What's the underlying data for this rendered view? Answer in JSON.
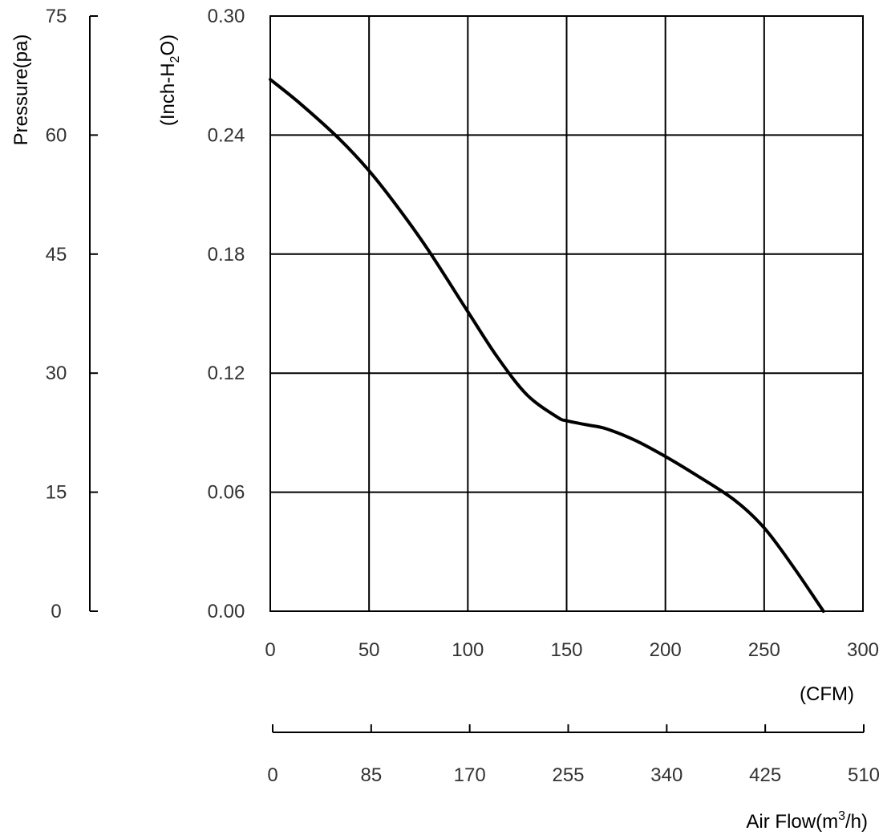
{
  "chart_data": {
    "type": "line",
    "title": "",
    "x_axis_primary": {
      "unit_label": "(CFM)",
      "range": [
        0,
        300
      ],
      "ticks": [
        "0",
        "50",
        "100",
        "150",
        "200",
        "250",
        "300"
      ]
    },
    "x_axis_secondary": {
      "label": "Air Flow(m",
      "label_sup": "3",
      "label_end": "/h)",
      "range": [
        0,
        510
      ],
      "ticks": [
        "0",
        "85",
        "170",
        "255",
        "340",
        "425",
        "510"
      ]
    },
    "y_axis_primary": {
      "label": "(Inch-H",
      "label_sub": "2",
      "label_end": "O)",
      "range": [
        0,
        0.3
      ],
      "ticks": [
        "0.00",
        "0.06",
        "0.12",
        "0.18",
        "0.24",
        "0.30"
      ]
    },
    "y_axis_secondary": {
      "label": "Pressure(pa)",
      "range": [
        0,
        75
      ],
      "ticks": [
        "0",
        "15",
        "30",
        "45",
        "60",
        "75"
      ]
    },
    "grid": true,
    "series": [
      {
        "x": [
          0,
          15,
          35,
          50,
          65,
          80,
          100,
          115,
          130,
          145,
          150,
          160,
          170,
          185,
          200,
          215,
          235,
          250,
          265,
          280
        ],
        "y": [
          0.268,
          0.256,
          0.238,
          0.222,
          0.203,
          0.182,
          0.151,
          0.128,
          0.109,
          0.098,
          0.096,
          0.094,
          0.092,
          0.086,
          0.078,
          0.069,
          0.056,
          0.042,
          0.022,
          0.0
        ]
      }
    ]
  }
}
